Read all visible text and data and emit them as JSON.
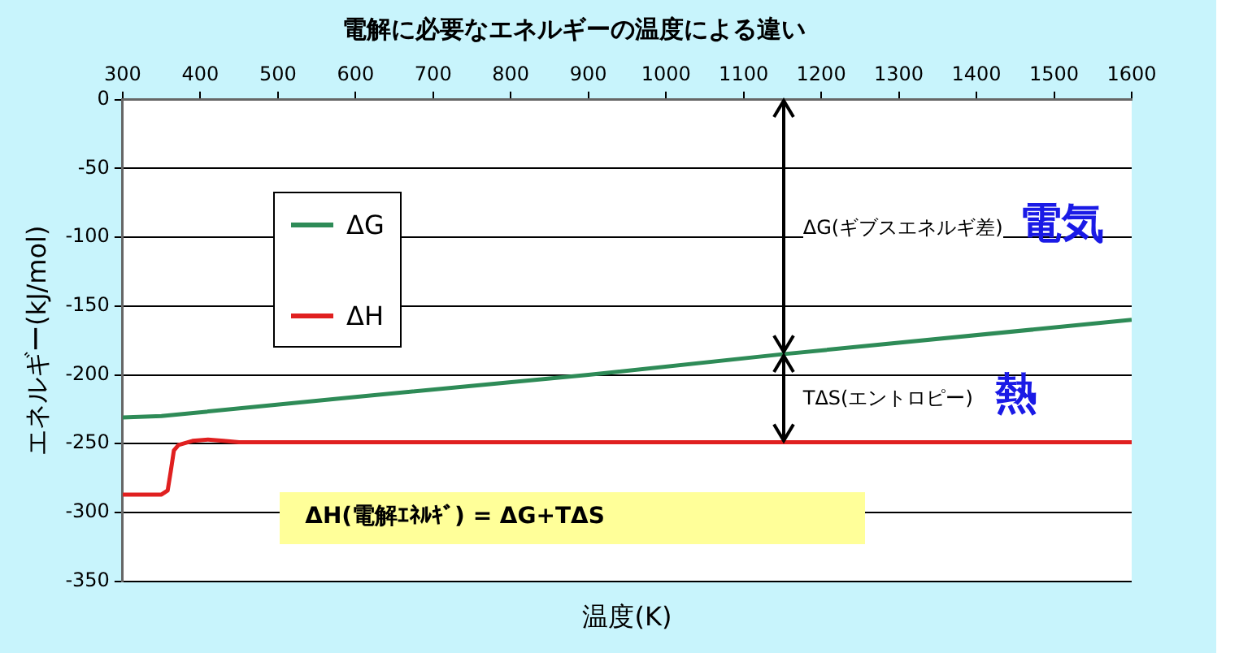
{
  "chart_data": {
    "type": "line",
    "title": "電解に必要なエネルギーの温度による違い",
    "xlabel": "温度(K)",
    "ylabel": "エネルギー(kJ/mol)",
    "series": [
      {
        "name": "ΔG",
        "color": "#2e8b57",
        "x": [
          300,
          350,
          600,
          900,
          1150,
          1600
        ],
        "values": [
          -231,
          -230,
          -216,
          -200,
          -185,
          -160
        ]
      },
      {
        "name": "ΔH",
        "color": "#e02020",
        "x": [
          300,
          350,
          358,
          362,
          366,
          372,
          390,
          410,
          430,
          450,
          600,
          1600
        ],
        "values": [
          -287,
          -287,
          -284,
          -270,
          -255,
          -251,
          -248,
          -247,
          -248,
          -249,
          -249,
          -249
        ]
      }
    ],
    "xlim": [
      300,
      1600
    ],
    "xticks": [
      300,
      400,
      500,
      600,
      700,
      800,
      900,
      1000,
      1100,
      1200,
      1300,
      1400,
      1500,
      1600
    ],
    "ylim": [
      -350,
      0
    ],
    "yticks": [
      0,
      -50,
      -100,
      -150,
      -200,
      -250,
      -300,
      -350
    ],
    "grid": "y",
    "legend": "top left",
    "marker": "none",
    "line_style": "solid",
    "annotations": [
      "ΔG(ギブスエネルギ差)",
      "電気",
      "TΔS(エントロピー)",
      "熱",
      "ΔH(電解ｴﾈﾙｷﾞ) = ΔG+TΔS"
    ]
  }
}
